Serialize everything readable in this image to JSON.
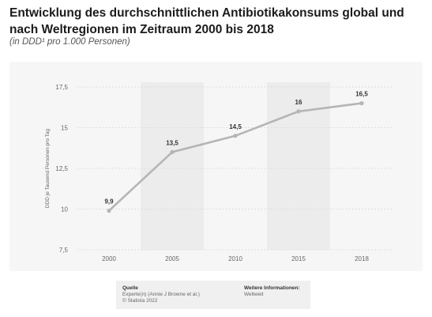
{
  "header": {
    "title": "Entwicklung des durchschnittlichen Antibiotikakonsums global und nach Weltregionen im Zeitraum 2000 bis 2018",
    "subtitle": "(in DDD¹ pro 1.000 Personen)"
  },
  "chart_data": {
    "type": "line",
    "title": "Entwicklung des durchschnittlichen Antibiotikakonsums global und nach Weltregionen im Zeitraum 2000 bis 2018",
    "subtitle": "(in DDD¹ pro 1.000 Personen)",
    "xlabel": "",
    "ylabel": "DDD je Tausend Personen pro Tag",
    "x": [
      "2000",
      "2005",
      "2010",
      "2015",
      "2018"
    ],
    "series": [
      {
        "values": [
          9.9,
          13.5,
          14.5,
          16,
          16.5
        ]
      }
    ],
    "data_labels": [
      "9,9",
      "13,5",
      "14,5",
      "16",
      "16,5"
    ],
    "y_ticks": [
      7.5,
      10,
      12.5,
      15,
      17.5
    ],
    "y_tick_labels": [
      "7,5",
      "10",
      "12,5",
      "15",
      "17,5"
    ],
    "ylim": [
      7.5,
      17.5
    ],
    "grid": true,
    "legend": "none",
    "colors": {
      "line": "#b5b5b5",
      "band": "#ececec",
      "grid": "#d6d6d6",
      "background": "#f6f6f6"
    }
  },
  "source": {
    "heading": "Quelle",
    "line1": "Experte(n) (Annie J Browne et al.)",
    "line2": "© Statista 2022"
  },
  "info": {
    "heading": "Weitere Informationen:",
    "line1": "Weltweit"
  }
}
